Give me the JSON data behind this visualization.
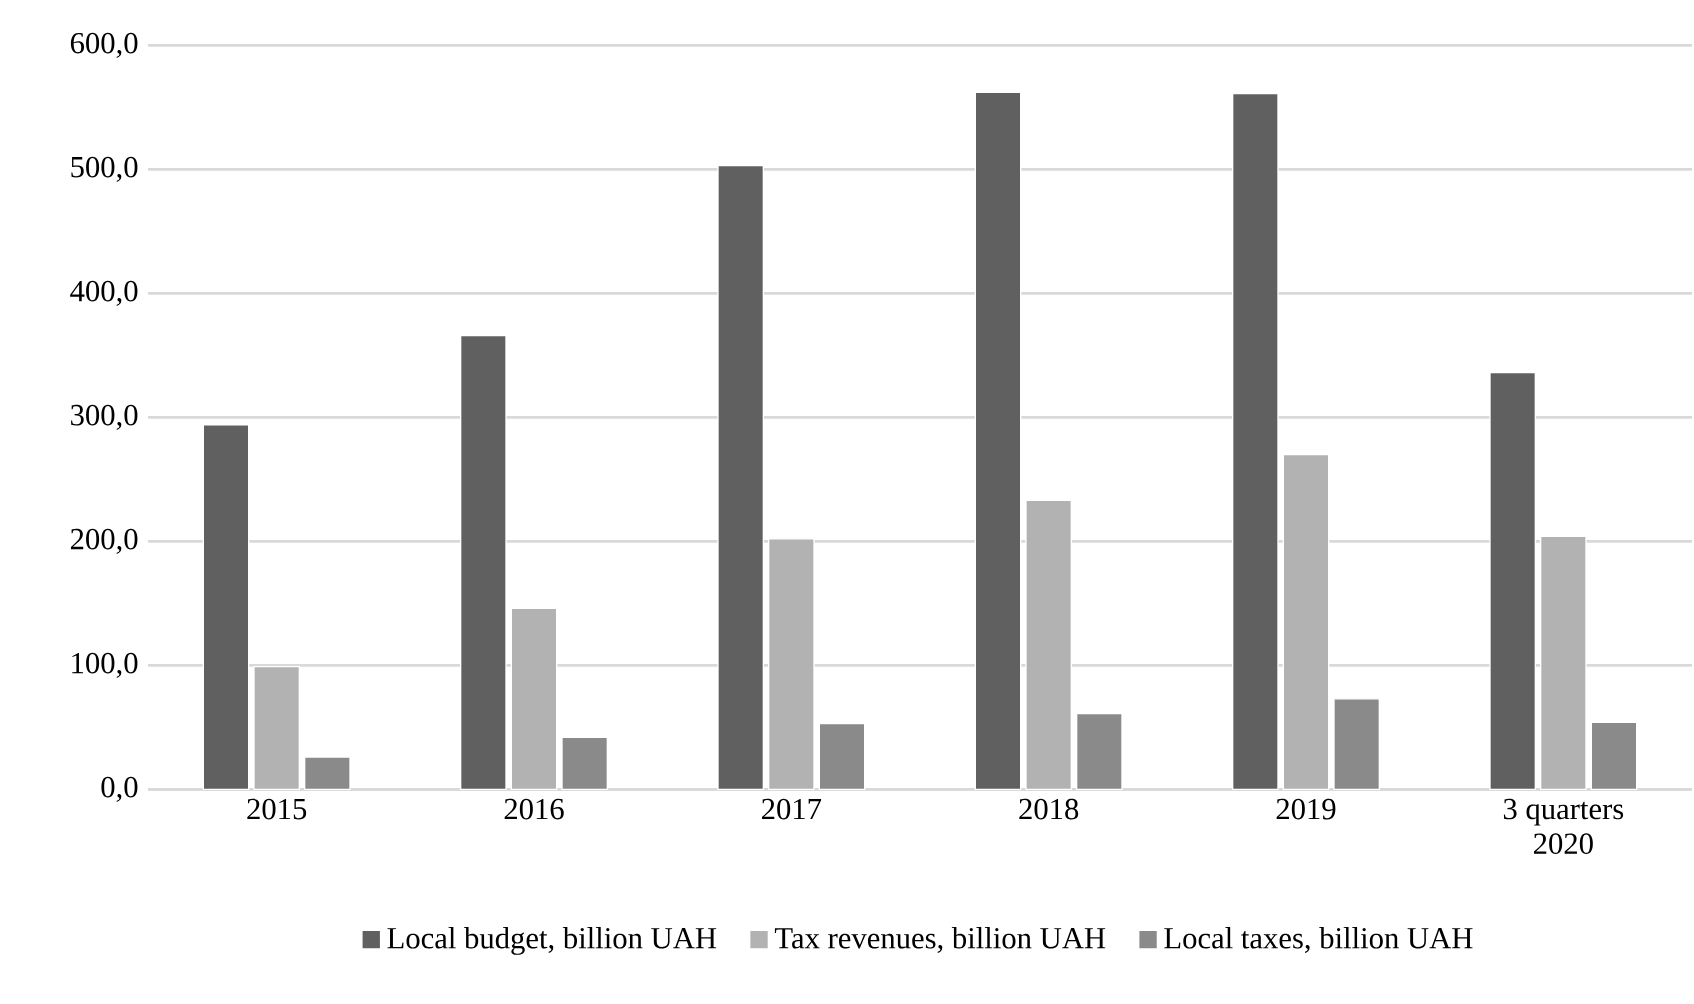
{
  "chart_data": {
    "type": "bar",
    "categories": [
      "2015",
      "2016",
      "2017",
      "2018",
      "2019",
      "3 quarters\n2020"
    ],
    "series": [
      {
        "name": "Local budget, billion UAH",
        "color": "#606060",
        "values": [
          294,
          366,
          503,
          562,
          561,
          336
        ]
      },
      {
        "name": "Tax revenues, billion UAH",
        "color": "#b2b2b2",
        "values": [
          99,
          146,
          202,
          233,
          270,
          204
        ]
      },
      {
        "name": "Local taxes, billion UAH",
        "color": "#8a8a8a",
        "values": [
          26,
          42,
          53,
          61,
          73,
          54
        ]
      }
    ],
    "ylim": [
      0,
      600
    ],
    "yticks": [
      {
        "value": 0,
        "label": "0,0"
      },
      {
        "value": 100,
        "label": "100,0"
      },
      {
        "value": 200,
        "label": "200,0"
      },
      {
        "value": 300,
        "label": "300,0"
      },
      {
        "value": 400,
        "label": "400,0"
      },
      {
        "value": 500,
        "label": "500,0"
      },
      {
        "value": 600,
        "label": "600,0"
      }
    ],
    "grid": "y",
    "legend": "bottom"
  }
}
